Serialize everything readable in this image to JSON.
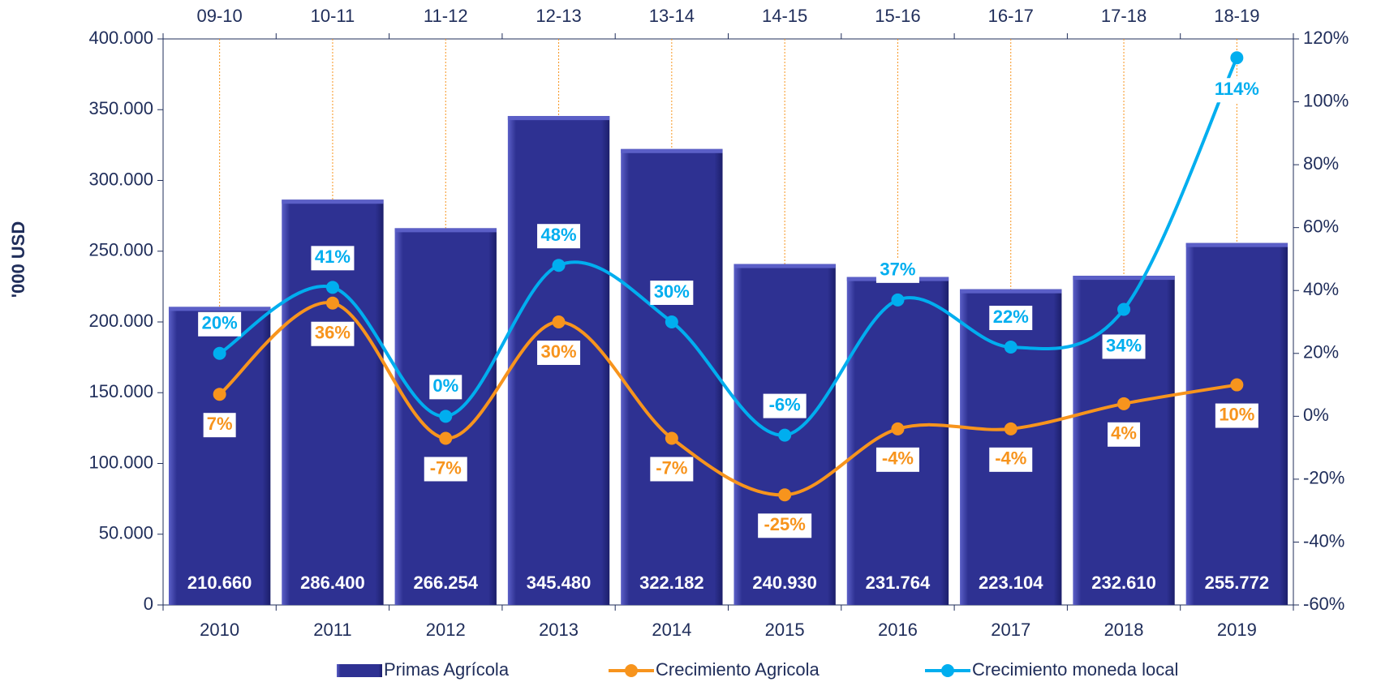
{
  "chart_data": {
    "type": "bar",
    "y_label": "'000 USD",
    "categories": [
      "2010",
      "2011",
      "2012",
      "2013",
      "2014",
      "2015",
      "2016",
      "2017",
      "2018",
      "2019"
    ],
    "top_categories": [
      "09-10",
      "10-11",
      "11-12",
      "12-13",
      "13-14",
      "14-15",
      "15-16",
      "16-17",
      "17-18",
      "18-19"
    ],
    "series": [
      {
        "name": "Primas Agrícola",
        "type": "bar",
        "axis": "y",
        "color": "#2e3192",
        "values": [
          210660,
          286400,
          266254,
          345480,
          322182,
          240930,
          231764,
          223104,
          232610,
          255772
        ],
        "value_labels": [
          "210.660",
          "286.400",
          "266.254",
          "345.480",
          "322.182",
          "240.930",
          "231.764",
          "223.104",
          "232.610",
          "255.772"
        ]
      },
      {
        "name": "Crecimiento Agricola",
        "type": "line",
        "axis": "y2",
        "color": "#f7941d",
        "values": [
          7,
          36,
          -7,
          30,
          -7,
          -25,
          -4,
          -4,
          4,
          10
        ],
        "value_labels": [
          "7%",
          "36%",
          "-7%",
          "30%",
          "-7%",
          "-25%",
          "-4%",
          "-4%",
          "4%",
          "10%"
        ]
      },
      {
        "name": "Crecimiento moneda local",
        "type": "line",
        "axis": "y2",
        "color": "#00aeef",
        "values": [
          20,
          41,
          0,
          48,
          30,
          -6,
          37,
          22,
          34,
          114
        ],
        "value_labels": [
          "20%",
          "41%",
          "0%",
          "48%",
          "30%",
          "-6%",
          "37%",
          "22%",
          "34%",
          "114%"
        ]
      }
    ],
    "ylim": [
      0,
      400000
    ],
    "yticks": [
      0,
      {
        "value": 50000,
        "label": "50.000"
      },
      {
        "value": 100000,
        "label": "100.000"
      },
      {
        "value": 150000,
        "label": "150.000"
      },
      {
        "value": 200000,
        "label": "200.000"
      },
      {
        "value": 250000,
        "label": "250.000"
      },
      {
        "value": 300000,
        "label": "300.000"
      },
      {
        "value": 350000,
        "label": "350.000"
      },
      {
        "value": 400000,
        "label": "400.000"
      }
    ],
    "y2lim": [
      -60,
      120
    ],
    "y2ticks": [
      {
        "value": -60,
        "label": "-60%"
      },
      {
        "value": -40,
        "label": "-40%"
      },
      {
        "value": -20,
        "label": "-20%"
      },
      {
        "value": 0,
        "label": "0%"
      },
      {
        "value": 20,
        "label": "20%"
      },
      {
        "value": 40,
        "label": "40%"
      },
      {
        "value": 60,
        "label": "60%"
      },
      {
        "value": 80,
        "label": "80%"
      },
      {
        "value": 100,
        "label": "100%"
      },
      {
        "value": 120,
        "label": "120%"
      }
    ],
    "legend": "bottom"
  }
}
